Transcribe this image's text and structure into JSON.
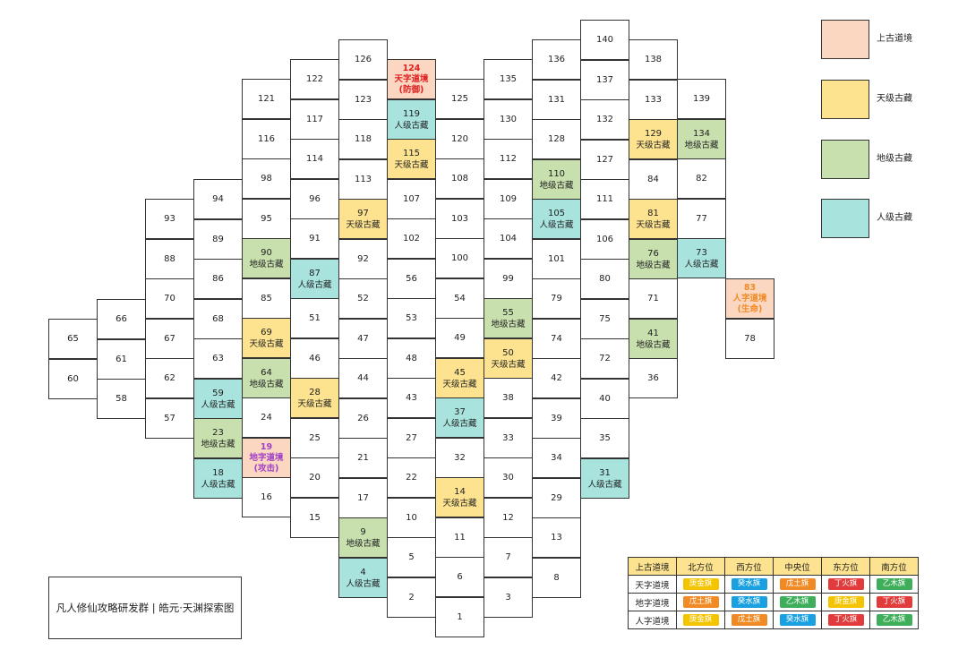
{
  "colors": {
    "上古道境": "#fbd6c0",
    "天级古藏": "#fde38f",
    "地级古藏": "#c7e0ad",
    "人级古藏": "#a8e3de",
    "flags": {
      "庚金旗": "#f5c400",
      "癸水旗": "#1aa0e0",
      "戊土旗": "#f08a24",
      "丁火旗": "#e23b3b",
      "乙木旗": "#3fae5a"
    }
  },
  "legend": [
    {
      "type": "upper",
      "label": "上古道境"
    },
    {
      "type": "tian",
      "label": "天级古藏"
    },
    {
      "type": "di",
      "label": "地级古藏"
    },
    {
      "type": "ren",
      "label": "人级古藏"
    }
  ],
  "caption": "凡人修仙攻略研发群 | 皓元·天渊探索图",
  "assignment": {
    "header": [
      "上古道境",
      "北方位",
      "西方位",
      "中央位",
      "东方位",
      "南方位"
    ],
    "rows": [
      {
        "name": "天字道境",
        "flags": [
          "庚金旗",
          "癸水旗",
          "戊土旗",
          "丁火旗",
          "乙木旗"
        ]
      },
      {
        "name": "地字道境",
        "flags": [
          "戊土旗",
          "癸水旗",
          "乙木旗",
          "庚金旗",
          "丁火旗"
        ]
      },
      {
        "name": "人字道境",
        "flags": [
          "庚金旗",
          "戊土旗",
          "癸水旗",
          "丁火旗",
          "乙木旗"
        ]
      }
    ]
  },
  "cells": [
    {
      "n": "65"
    },
    {
      "n": "60"
    },
    {
      "n": "66"
    },
    {
      "n": "61"
    },
    {
      "n": "58"
    },
    {
      "n": "93"
    },
    {
      "n": "88"
    },
    {
      "n": "70"
    },
    {
      "n": "67"
    },
    {
      "n": "62"
    },
    {
      "n": "57"
    },
    {
      "n": "94"
    },
    {
      "n": "89"
    },
    {
      "n": "86"
    },
    {
      "n": "68"
    },
    {
      "n": "63"
    },
    {
      "n": "59",
      "t": "ren",
      "l": "人级古藏"
    },
    {
      "n": "23",
      "t": "di",
      "l": "地级古藏"
    },
    {
      "n": "18",
      "t": "ren",
      "l": "人级古藏"
    },
    {
      "n": "121"
    },
    {
      "n": "116"
    },
    {
      "n": "98"
    },
    {
      "n": "95"
    },
    {
      "n": "90",
      "t": "di",
      "l": "地级古藏"
    },
    {
      "n": "85"
    },
    {
      "n": "69",
      "t": "tian",
      "l": "天级古藏"
    },
    {
      "n": "64",
      "t": "di",
      "l": "地级古藏"
    },
    {
      "n": "24"
    },
    {
      "n": "19",
      "t": "upper",
      "l": "地字道境",
      "l2": "(攻击)",
      "c": "#a040c8"
    },
    {
      "n": "16"
    },
    {
      "n": "122"
    },
    {
      "n": "117"
    },
    {
      "n": "114"
    },
    {
      "n": "96"
    },
    {
      "n": "91"
    },
    {
      "n": "87",
      "t": "ren",
      "l": "人级古藏"
    },
    {
      "n": "51"
    },
    {
      "n": "46"
    },
    {
      "n": "28",
      "t": "tian",
      "l": "天级古藏"
    },
    {
      "n": "25"
    },
    {
      "n": "20"
    },
    {
      "n": "15"
    },
    {
      "n": "126"
    },
    {
      "n": "123"
    },
    {
      "n": "118"
    },
    {
      "n": "113"
    },
    {
      "n": "97",
      "t": "tian",
      "l": "天级古藏"
    },
    {
      "n": "92"
    },
    {
      "n": "52"
    },
    {
      "n": "47"
    },
    {
      "n": "44"
    },
    {
      "n": "26"
    },
    {
      "n": "21"
    },
    {
      "n": "17"
    },
    {
      "n": "9",
      "t": "di",
      "l": "地级古藏"
    },
    {
      "n": "4",
      "t": "ren",
      "l": "人级古藏"
    },
    {
      "n": "124",
      "t": "upper",
      "l": "天字道境",
      "l2": "(防御)",
      "c": "#e02020"
    },
    {
      "n": "119",
      "t": "ren",
      "l": "人级古藏"
    },
    {
      "n": "115",
      "t": "tian",
      "l": "天级古藏"
    },
    {
      "n": "107"
    },
    {
      "n": "102"
    },
    {
      "n": "56"
    },
    {
      "n": "53"
    },
    {
      "n": "48"
    },
    {
      "n": "43"
    },
    {
      "n": "27"
    },
    {
      "n": "22"
    },
    {
      "n": "10"
    },
    {
      "n": "5"
    },
    {
      "n": "2"
    },
    {
      "n": "125"
    },
    {
      "n": "120"
    },
    {
      "n": "108"
    },
    {
      "n": "103"
    },
    {
      "n": "100"
    },
    {
      "n": "54"
    },
    {
      "n": "49"
    },
    {
      "n": "45",
      "t": "tian",
      "l": "天级古藏"
    },
    {
      "n": "37",
      "t": "ren",
      "l": "人级古藏"
    },
    {
      "n": "32"
    },
    {
      "n": "14",
      "t": "tian",
      "l": "天级古藏"
    },
    {
      "n": "11"
    },
    {
      "n": "6"
    },
    {
      "n": "1"
    },
    {
      "n": "135"
    },
    {
      "n": "130"
    },
    {
      "n": "112"
    },
    {
      "n": "109"
    },
    {
      "n": "104"
    },
    {
      "n": "99"
    },
    {
      "n": "55",
      "t": "di",
      "l": "地级古藏"
    },
    {
      "n": "50",
      "t": "tian",
      "l": "天级古藏"
    },
    {
      "n": "38"
    },
    {
      "n": "33"
    },
    {
      "n": "30"
    },
    {
      "n": "12"
    },
    {
      "n": "7"
    },
    {
      "n": "3"
    },
    {
      "n": "136"
    },
    {
      "n": "131"
    },
    {
      "n": "128"
    },
    {
      "n": "110",
      "t": "di",
      "l": "地级古藏"
    },
    {
      "n": "105",
      "t": "ren",
      "l": "人级古藏"
    },
    {
      "n": "101"
    },
    {
      "n": "79"
    },
    {
      "n": "74"
    },
    {
      "n": "42"
    },
    {
      "n": "39"
    },
    {
      "n": "34"
    },
    {
      "n": "29"
    },
    {
      "n": "13"
    },
    {
      "n": "8"
    },
    {
      "n": "140"
    },
    {
      "n": "137"
    },
    {
      "n": "132"
    },
    {
      "n": "127"
    },
    {
      "n": "111"
    },
    {
      "n": "106"
    },
    {
      "n": "80"
    },
    {
      "n": "75"
    },
    {
      "n": "72"
    },
    {
      "n": "40"
    },
    {
      "n": "35"
    },
    {
      "n": "31",
      "t": "ren",
      "l": "人级古藏"
    },
    {
      "n": "138"
    },
    {
      "n": "133"
    },
    {
      "n": "129",
      "t": "tian",
      "l": "天级古藏"
    },
    {
      "n": "84"
    },
    {
      "n": "81",
      "t": "tian",
      "l": "天级古藏"
    },
    {
      "n": "76",
      "t": "di",
      "l": "地级古藏"
    },
    {
      "n": "71"
    },
    {
      "n": "41",
      "t": "di",
      "l": "地级古藏"
    },
    {
      "n": "36"
    },
    {
      "n": "139"
    },
    {
      "n": "134",
      "t": "di",
      "l": "地级古藏"
    },
    {
      "n": "82"
    },
    {
      "n": "77"
    },
    {
      "n": "73",
      "t": "ren",
      "l": "人级古藏"
    },
    {
      "n": "83",
      "t": "upper",
      "l": "人字道境",
      "l2": "(生命)",
      "c": "#f08a24"
    },
    {
      "n": "78"
    }
  ]
}
